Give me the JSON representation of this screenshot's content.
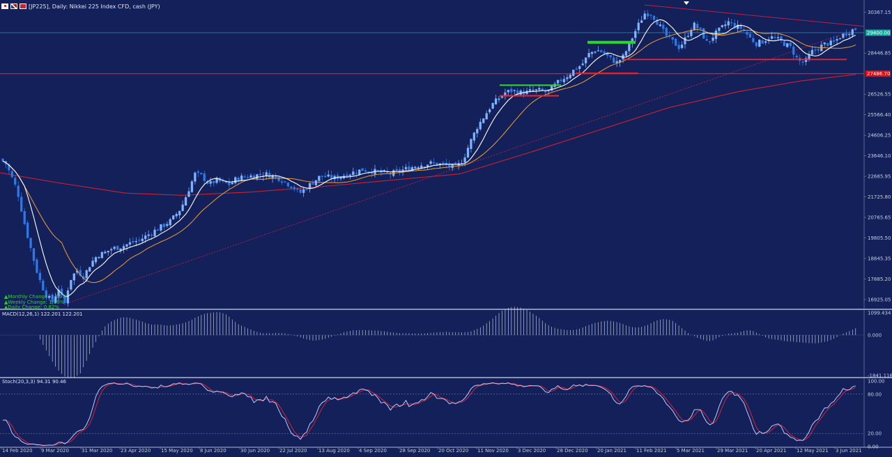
{
  "header": {
    "title": "[JP225], Daily: Nikkei 225 Index CFD, cash (JPY)"
  },
  "colors": {
    "background": "#13205a",
    "bull": "#7fb2ff",
    "bear": "#2e79e6",
    "ma_fast": "#ffffff",
    "ma_mid": "#f0a030",
    "ma_slow": "#d0202a",
    "level_red": "#ff2020",
    "level_green": "#22dd22",
    "trend": "#d02040"
  },
  "price_panel": {
    "y_ticks": [
      "30367.15",
      "28446.85",
      "27486.70",
      "26526.55",
      "25566.40",
      "24606.25",
      "23646.10",
      "22685.95",
      "21725.80",
      "20765.65",
      "19805.50",
      "18845.35",
      "17885.20",
      "16925.05"
    ],
    "last_price": "29400.00",
    "red_level_price": "27486.70",
    "legend": [
      "▲Monthly Change: 1.96%",
      "▲Weekly Change: 1.59%",
      "▲Daily Change: 0.82%"
    ]
  },
  "macd_panel": {
    "label": "MACD(12,26,1) 122.201 122.201",
    "y_ticks": [
      "1099.434",
      "0.000",
      "-1841.116"
    ]
  },
  "stoch_panel": {
    "label": "Stoch(20,3,3) 94.31 90.46",
    "y_ticks": [
      "100.00",
      "80.00",
      "20.00",
      "0.00"
    ]
  },
  "x_axis": [
    "14 Feb 2020",
    "9 Mar 2020",
    "31 Mar 2020",
    "23 Apr 2020",
    "15 May 2020",
    "8 Jun 2020",
    "30 Jun 2020",
    "22 Jul 2020",
    "13 Aug 2020",
    "4 Sep 2020",
    "28 Sep 2020",
    "20 Oct 2020",
    "11 Nov 2020",
    "3 Dec 2020",
    "28 Dec 2020",
    "20 Jan 2021",
    "11 Feb 2021",
    "5 Mar 2021",
    "29 Mar 2021",
    "20 Apr 2021",
    "12 May 2021",
    "3 Jun 2021"
  ],
  "chart_data": {
    "type": "candlestick",
    "symbol": "JP225",
    "timeframe": "Daily",
    "ylim": [
      16500,
      30800
    ],
    "close_path": [
      [
        0,
        23500
      ],
      [
        8,
        23300
      ],
      [
        15,
        22800
      ],
      [
        25,
        22000
      ],
      [
        35,
        20500
      ],
      [
        45,
        19200
      ],
      [
        55,
        18000
      ],
      [
        65,
        17200
      ],
      [
        75,
        16800
      ],
      [
        85,
        17500
      ],
      [
        92,
        16600
      ],
      [
        100,
        17800
      ],
      [
        110,
        18300
      ],
      [
        120,
        18000
      ],
      [
        130,
        18600
      ],
      [
        140,
        19000
      ],
      [
        150,
        19100
      ],
      [
        160,
        19300
      ],
      [
        175,
        19400
      ],
      [
        190,
        19600
      ],
      [
        200,
        19700
      ],
      [
        215,
        20000
      ],
      [
        230,
        20300
      ],
      [
        245,
        20600
      ],
      [
        260,
        21200
      ],
      [
        270,
        22000
      ],
      [
        280,
        22800
      ],
      [
        290,
        22700
      ],
      [
        300,
        22300
      ],
      [
        310,
        22500
      ],
      [
        320,
        22400
      ],
      [
        330,
        22300
      ],
      [
        340,
        22600
      ],
      [
        360,
        22700
      ],
      [
        380,
        22800
      ],
      [
        400,
        22600
      ],
      [
        420,
        22200
      ],
      [
        430,
        21900
      ],
      [
        445,
        22300
      ],
      [
        460,
        22700
      ],
      [
        480,
        22600
      ],
      [
        500,
        22800
      ],
      [
        520,
        23000
      ],
      [
        540,
        22900
      ],
      [
        560,
        22800
      ],
      [
        580,
        23000
      ],
      [
        600,
        23200
      ],
      [
        620,
        23300
      ],
      [
        640,
        23200
      ],
      [
        655,
        23100
      ],
      [
        665,
        23500
      ],
      [
        675,
        24300
      ],
      [
        685,
        25000
      ],
      [
        695,
        25500
      ],
      [
        705,
        26000
      ],
      [
        715,
        26300
      ],
      [
        725,
        26600
      ],
      [
        735,
        26700
      ],
      [
        745,
        26600
      ],
      [
        755,
        26600
      ],
      [
        765,
        26700
      ],
      [
        775,
        26700
      ],
      [
        785,
        26600
      ],
      [
        795,
        26900
      ],
      [
        805,
        27200
      ],
      [
        815,
        27400
      ],
      [
        825,
        27700
      ],
      [
        835,
        27900
      ],
      [
        845,
        28400
      ],
      [
        855,
        28600
      ],
      [
        865,
        28500
      ],
      [
        875,
        28200
      ],
      [
        885,
        28000
      ],
      [
        895,
        28300
      ],
      [
        905,
        29000
      ],
      [
        915,
        29700
      ],
      [
        925,
        30300
      ],
      [
        935,
        30300
      ],
      [
        945,
        29800
      ],
      [
        955,
        29300
      ],
      [
        965,
        29000
      ],
      [
        975,
        28700
      ],
      [
        985,
        29200
      ],
      [
        995,
        29800
      ],
      [
        1005,
        29500
      ],
      [
        1015,
        28900
      ],
      [
        1025,
        29300
      ],
      [
        1035,
        29600
      ],
      [
        1045,
        29900
      ],
      [
        1055,
        29700
      ],
      [
        1065,
        29600
      ],
      [
        1075,
        29200
      ],
      [
        1085,
        28900
      ],
      [
        1095,
        29000
      ],
      [
        1105,
        29200
      ],
      [
        1115,
        29100
      ],
      [
        1125,
        28900
      ],
      [
        1135,
        28700
      ],
      [
        1145,
        28100
      ],
      [
        1155,
        28000
      ],
      [
        1165,
        28500
      ],
      [
        1175,
        28700
      ],
      [
        1185,
        28900
      ],
      [
        1195,
        28900
      ],
      [
        1205,
        29200
      ],
      [
        1215,
        29400
      ],
      [
        1228,
        29600
      ]
    ],
    "indicators": {
      "ma_fast_period_color": "white",
      "ma_mid_color": "orange",
      "ma_slow_color": "red"
    },
    "horizontal_levels": [
      {
        "price": 29400,
        "color": "#4aa0c8"
      },
      {
        "price": 27486.7,
        "color": "#ff2020"
      }
    ],
    "macd": {
      "current": 122.201,
      "ylim": [
        -1841.116,
        1099.434
      ]
    },
    "stochastic": {
      "k": 94.31,
      "d": 90.46,
      "ylim": [
        0,
        100
      ],
      "levels": [
        20,
        80
      ]
    }
  }
}
